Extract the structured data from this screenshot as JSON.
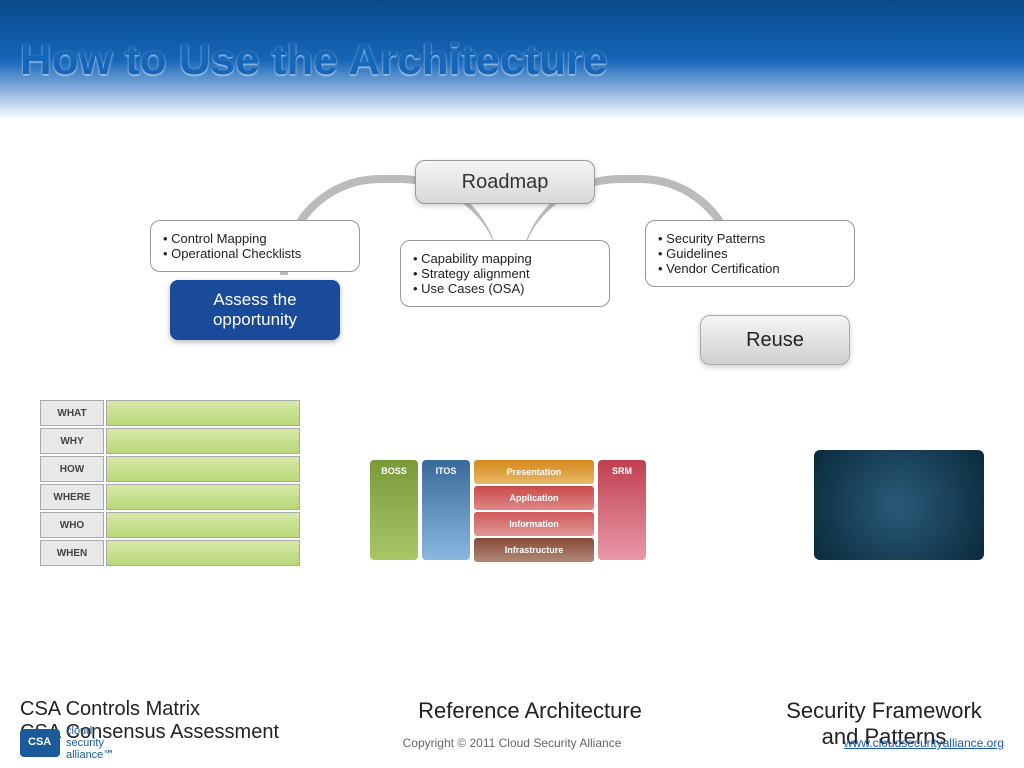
{
  "title": "How to Use the Architecture",
  "roadmap": "Roadmap",
  "box1": {
    "a": "• Control Mapping",
    "b": "• Operational Checklists"
  },
  "box2": {
    "a": "• Capability mapping",
    "b": "• Strategy alignment",
    "c": "• Use Cases (OSA)"
  },
  "box3": {
    "a": "• Security Patterns",
    "b": "• Guidelines",
    "c": "• Vendor Certification"
  },
  "assess": "Assess the opportunity",
  "reuse": "Reuse",
  "zachman": [
    "WHAT",
    "WHY",
    "HOW",
    "WHERE",
    "WHO",
    "WHEN"
  ],
  "pillars": {
    "boss": "BOSS",
    "itos": "ITOS",
    "srm": "SRM"
  },
  "stack": {
    "pres": "Presentation",
    "app": "Application",
    "info": "Information",
    "infra": "Infrastructure"
  },
  "cap1a": "CSA Controls Matrix",
  "cap1b": "CSA Consensus Assessment",
  "cap2": "Reference Architecture",
  "cap3a": "Security Framework",
  "cap3b": "and Patterns",
  "logotext": {
    "a": "cloud",
    "b": "security",
    "c": "alliance℠"
  },
  "copyright": "Copyright © 2011 Cloud Security Alliance",
  "url": "www.cloudsecurityalliance.org",
  "colors": {
    "header_grad_top": "#0a4a8a",
    "title_color": "#1565b8",
    "assess_bg": "#1a4a9a"
  }
}
